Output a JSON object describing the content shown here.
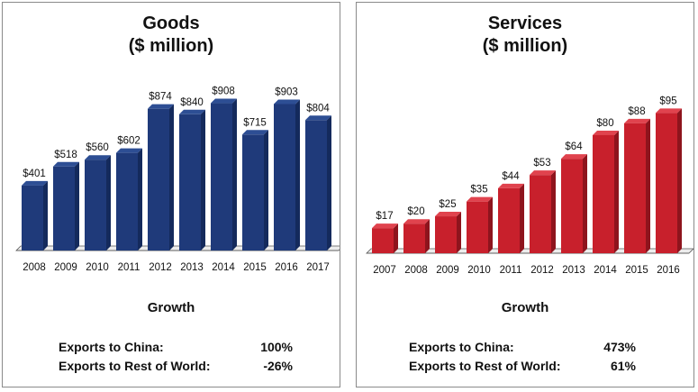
{
  "chart_data": [
    {
      "type": "bar",
      "title": "Goods",
      "subtitle": "($ million)",
      "categories": [
        "2008",
        "2009",
        "2010",
        "2011",
        "2012",
        "2013",
        "2014",
        "2015",
        "2016",
        "2017"
      ],
      "values": [
        401,
        518,
        560,
        602,
        874,
        840,
        908,
        715,
        903,
        804
      ],
      "value_labels": [
        "$401",
        "$518",
        "$560",
        "$602",
        "$874",
        "$840",
        "$908",
        "$715",
        "$903",
        "$804"
      ],
      "ylim": [
        0,
        1000
      ],
      "grid": false,
      "style": "3d",
      "color": "#1f3a7a",
      "side_color": "#142a5c",
      "top_color": "#2d4e94",
      "growth": {
        "title": "Growth",
        "rows": [
          {
            "label": "Exports to China:",
            "value": "100%"
          },
          {
            "label": "Exports to Rest of World:",
            "value": "-26%"
          }
        ]
      }
    },
    {
      "type": "bar",
      "title": "Services",
      "subtitle": "($ million)",
      "categories": [
        "2007",
        "2008",
        "2009",
        "2010",
        "2011",
        "2012",
        "2013",
        "2014",
        "2015",
        "2016"
      ],
      "values": [
        17,
        20,
        25,
        35,
        44,
        53,
        64,
        80,
        88,
        95
      ],
      "value_labels": [
        "$17",
        "$20",
        "$25",
        "$35",
        "$44",
        "$53",
        "$64",
        "$80",
        "$88",
        "$95"
      ],
      "ylim": [
        0,
        105
      ],
      "grid": false,
      "style": "3d",
      "color": "#c8202c",
      "side_color": "#8e141d",
      "top_color": "#e0434e",
      "growth": {
        "title": "Growth",
        "rows": [
          {
            "label": "Exports to China:",
            "value": "473%"
          },
          {
            "label": "Exports to Rest of World:",
            "value": "61%"
          }
        ]
      }
    }
  ]
}
